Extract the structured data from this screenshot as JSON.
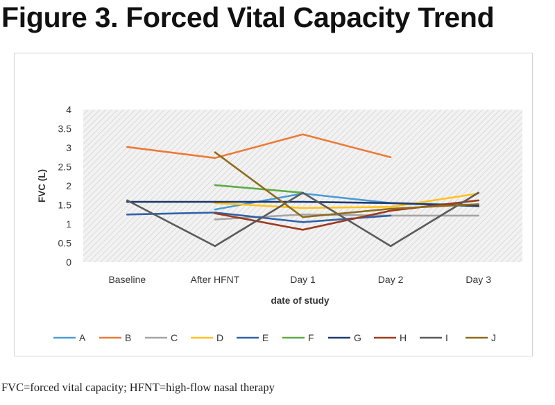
{
  "figure_title": "Figure 3. Forced Vital Capacity Trend",
  "caption": "FVC=forced vital capacity; HFNT=high-flow nasal therapy",
  "chart_data": {
    "type": "line",
    "title": "",
    "xlabel": "date of study",
    "ylabel": "FVC (L)",
    "categories": [
      "Baseline",
      "After HFNT",
      "Day 1",
      "Day 2",
      "Day 3"
    ],
    "ylim": [
      0,
      4
    ],
    "yticks": [
      "0",
      "0.5",
      "1",
      "1.5",
      "2",
      "2.5",
      "3",
      "3.5",
      "4"
    ],
    "grid": false,
    "plot_background": "diagonal hatch",
    "legend_position": "bottom",
    "series": [
      {
        "name": "A",
        "color": "#4a9cd6",
        "values": [
          null,
          1.38,
          1.8,
          1.55,
          1.5
        ]
      },
      {
        "name": "B",
        "color": "#ec7a35",
        "values": [
          3.02,
          2.73,
          3.35,
          2.75,
          null
        ]
      },
      {
        "name": "C",
        "color": "#a5a5a5",
        "values": [
          null,
          1.12,
          1.25,
          1.22,
          1.22
        ]
      },
      {
        "name": "D",
        "color": "#ffc21c",
        "values": [
          null,
          1.55,
          1.42,
          1.45,
          1.8
        ]
      },
      {
        "name": "E",
        "color": "#2f62a8",
        "values": [
          1.25,
          1.3,
          1.05,
          1.22,
          null
        ]
      },
      {
        "name": "F",
        "color": "#5cac45",
        "values": [
          null,
          2.02,
          1.82,
          null,
          null
        ]
      },
      {
        "name": "G",
        "color": "#1f3a6e",
        "values": [
          1.58,
          1.58,
          1.58,
          1.55,
          1.47
        ]
      },
      {
        "name": "H",
        "color": "#9e3a1c",
        "values": [
          null,
          1.28,
          0.85,
          1.35,
          1.62
        ]
      },
      {
        "name": "I",
        "color": "#5a5a5a",
        "values": [
          1.62,
          0.42,
          1.82,
          0.42,
          1.82
        ]
      },
      {
        "name": "J",
        "color": "#8e6b1c",
        "values": [
          null,
          2.88,
          1.18,
          1.4,
          1.52
        ]
      }
    ]
  }
}
